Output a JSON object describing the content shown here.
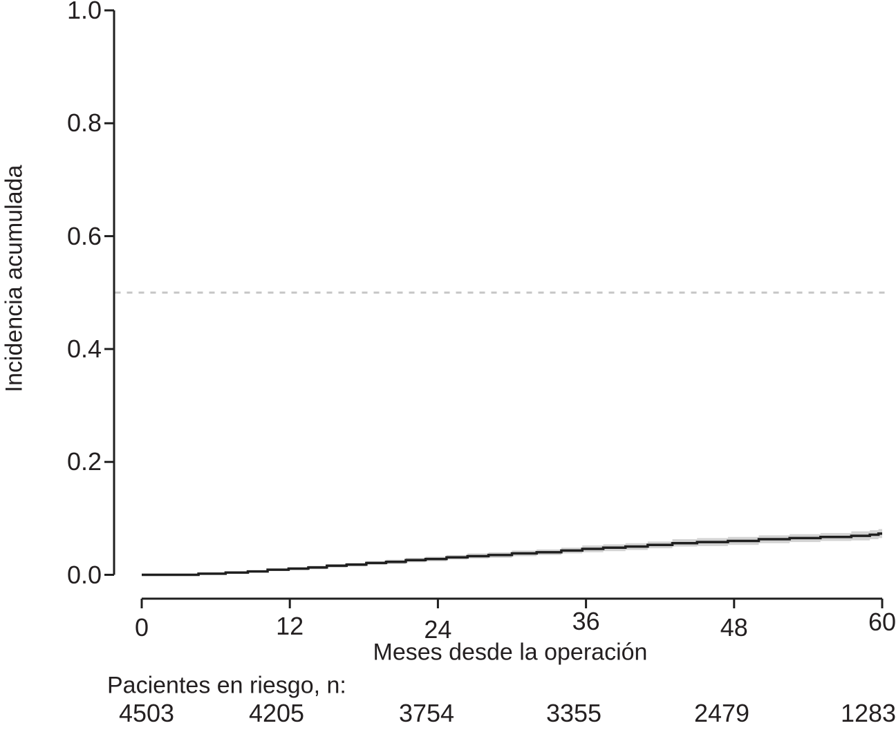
{
  "figure": {
    "background": "#ffffff"
  },
  "chart_data": {
    "type": "line",
    "subtype": "cumulative-incidence-step-curve",
    "title": "",
    "xlabel": "Meses desde la operación",
    "ylabel": "Incidencia acumulada",
    "xlim": [
      0,
      60
    ],
    "ylim": [
      0.0,
      1.0
    ],
    "x_ticks": [
      "0",
      "12",
      "24",
      "36",
      "48",
      "60"
    ],
    "y_ticks": [
      "0.0",
      "0.2",
      "0.4",
      "0.6",
      "0.8",
      "1.0"
    ],
    "reference_line_y": 0.5,
    "grid": false,
    "legend": false,
    "series": [
      {
        "name": "Incidencia acumulada",
        "months": [
          0,
          4.6,
          6.8,
          8.6,
          10.2,
          11.9,
          13.5,
          15.0,
          16.6,
          18.2,
          19.8,
          21.4,
          23.0,
          24.7,
          26.4,
          28.1,
          30.0,
          32.0,
          34.0,
          35.7,
          37.4,
          39.2,
          41.0,
          43.0,
          45.0,
          47.5,
          50.0,
          52.5,
          55.0,
          57.5,
          59.0,
          59.7
        ],
        "estimate": [
          0,
          0.002,
          0.004,
          0.006,
          0.009,
          0.011,
          0.013,
          0.016,
          0.018,
          0.021,
          0.023,
          0.026,
          0.028,
          0.031,
          0.033,
          0.035,
          0.038,
          0.04,
          0.043,
          0.046,
          0.048,
          0.05,
          0.053,
          0.056,
          0.058,
          0.06,
          0.063,
          0.065,
          0.067,
          0.069,
          0.071,
          0.073
        ],
        "ci_lower": [
          0,
          0.0,
          0.002,
          0.004,
          0.007,
          0.008,
          0.01,
          0.013,
          0.015,
          0.018,
          0.019,
          0.022,
          0.024,
          0.027,
          0.029,
          0.03,
          0.033,
          0.035,
          0.038,
          0.04,
          0.042,
          0.044,
          0.047,
          0.05,
          0.051,
          0.053,
          0.056,
          0.058,
          0.06,
          0.061,
          0.063,
          0.065
        ],
        "ci_upper": [
          0,
          0.004,
          0.006,
          0.008,
          0.011,
          0.013,
          0.016,
          0.019,
          0.021,
          0.024,
          0.027,
          0.03,
          0.032,
          0.035,
          0.038,
          0.04,
          0.043,
          0.045,
          0.048,
          0.052,
          0.054,
          0.056,
          0.059,
          0.063,
          0.065,
          0.067,
          0.07,
          0.072,
          0.074,
          0.077,
          0.079,
          0.081
        ],
        "end_value_at_60": 0.073
      }
    ],
    "risk_table": {
      "label": "Pacientes en riesgo, n:",
      "months": [
        0,
        12,
        24,
        36,
        48,
        60
      ],
      "counts": [
        "4503",
        "4205",
        "3754",
        "3355",
        "2479",
        "1283"
      ]
    },
    "colors": {
      "curve": "#1f1f1f",
      "ci_band": "#d3d3d3",
      "reference_line": "#c6c6c6",
      "axis": "#1f1f1f",
      "text": "#231f20",
      "background": "#ffffff"
    }
  }
}
